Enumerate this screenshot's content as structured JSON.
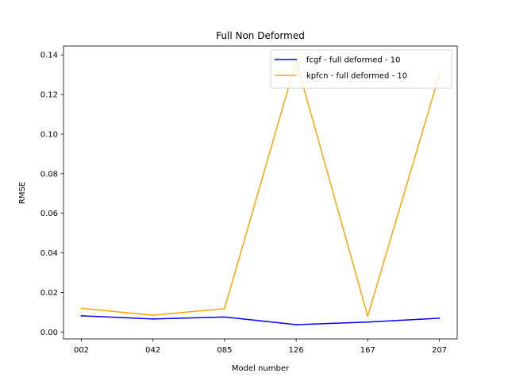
{
  "chart_data": {
    "type": "line",
    "title": "Full Non Deformed",
    "xlabel": "Model number",
    "ylabel": "RMSE",
    "categories": [
      "002",
      "042",
      "085",
      "126",
      "167",
      "207"
    ],
    "ylim": [
      -0.0035,
      0.1445
    ],
    "yticks": [
      0.0,
      0.02,
      0.04,
      0.06,
      0.08,
      0.1,
      0.12,
      0.14
    ],
    "ytick_labels": [
      "0.00",
      "0.02",
      "0.04",
      "0.06",
      "0.08",
      "0.10",
      "0.12",
      "0.14"
    ],
    "grid": false,
    "legend_position": "top-right",
    "series": [
      {
        "name": "fcgf - full deformed - 10",
        "color": "#0000ff",
        "values": [
          0.0082,
          0.0066,
          0.0076,
          0.0037,
          0.005,
          0.007
        ]
      },
      {
        "name": "kpfcn - full deformed - 10",
        "color": "#ffa500",
        "values": [
          0.012,
          0.0085,
          0.0118,
          0.137,
          0.008,
          0.13
        ]
      }
    ]
  }
}
